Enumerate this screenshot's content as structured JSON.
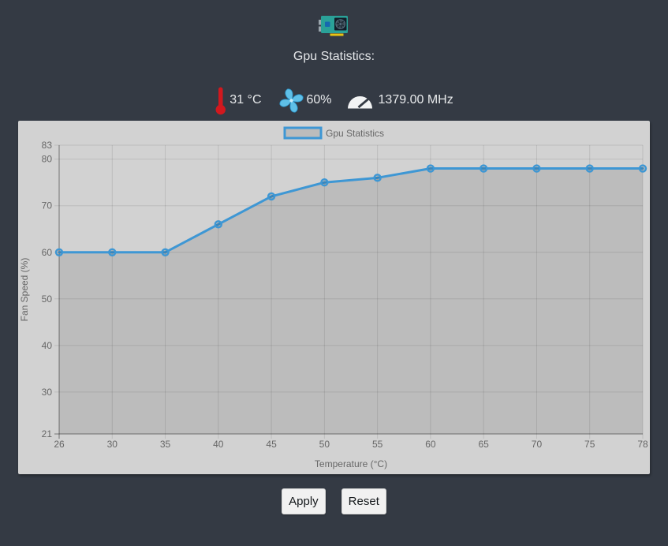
{
  "header": {
    "title": "Gpu Statistics:"
  },
  "stats": {
    "temperature": {
      "icon": "thermometer-icon",
      "value": "31 °C"
    },
    "fan": {
      "icon": "fan-icon",
      "value": "60%"
    },
    "clock": {
      "icon": "gauge-icon",
      "value": "1379.00 MHz"
    }
  },
  "chart_data": {
    "type": "line",
    "legend": "Gpu Statistics",
    "legend_position": "top",
    "xlabel": "Temperature (°C)",
    "ylabel": "Fan Speed (%)",
    "categories": [
      26,
      30,
      35,
      40,
      45,
      50,
      55,
      60,
      65,
      70,
      75,
      78
    ],
    "values": [
      60,
      60,
      60,
      66,
      72,
      75,
      76,
      78,
      78,
      78,
      78,
      78
    ],
    "y_ticks": [
      83,
      80,
      70,
      60,
      50,
      40,
      30,
      21
    ],
    "ylim": [
      21,
      83
    ],
    "grid": true,
    "line_color": "#3e97d4",
    "fill_color": "rgba(0,0,0,0.1)",
    "grid_color": "rgba(0,0,0,0.1)",
    "axis_color": "rgba(0,0,0,0.38)",
    "tick_color": "#666666",
    "background": "#d2d2d2"
  },
  "buttons": {
    "apply": "Apply",
    "reset": "Reset"
  }
}
